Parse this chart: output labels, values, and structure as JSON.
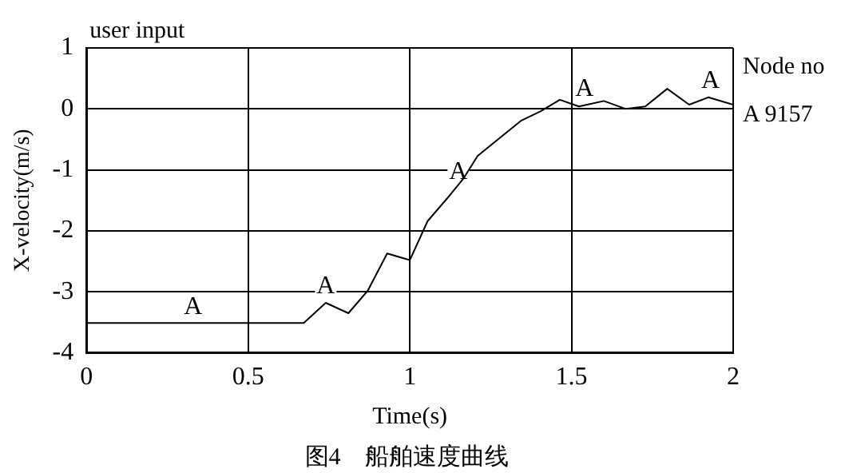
{
  "chart_data": {
    "type": "line",
    "title": "user input",
    "xlabel": "Time(s)",
    "ylabel": "X-velocity(m/s)",
    "legend_title": "Node no",
    "legend": "right",
    "x": [
      0,
      0.672,
      0.74,
      0.81,
      0.87,
      0.93,
      1.0,
      1.055,
      1.115,
      1.166,
      1.21,
      1.345,
      1.404,
      1.464,
      1.523,
      1.6,
      1.668,
      1.728,
      1.796,
      1.864,
      1.923,
      2.0
    ],
    "series": [
      {
        "name": "A 9157",
        "color": "#000000",
        "values": [
          -3.51,
          -3.51,
          -3.18,
          -3.35,
          -2.98,
          -2.37,
          -2.48,
          -1.84,
          -1.47,
          -1.14,
          -0.77,
          -0.19,
          -0.04,
          0.15,
          0.04,
          0.13,
          0.0,
          0.04,
          0.33,
          0.07,
          0.19,
          0.07
        ]
      }
    ],
    "xlim": [
      0,
      2
    ],
    "xticks": [
      0,
      0.5,
      1,
      1.5,
      2
    ],
    "ylim": [
      -4,
      1
    ],
    "yticks": [
      -4,
      -3,
      -2,
      -1,
      0,
      1
    ],
    "grid": true,
    "annotations": [
      {
        "text": "A",
        "x": 0.33,
        "y": -3.51
      },
      {
        "text": "A",
        "x": 0.74,
        "y": -3.18
      },
      {
        "text": "A",
        "x": 1.15,
        "y": -1.3
      },
      {
        "text": "A",
        "x": 1.54,
        "y": 0.06
      },
      {
        "text": "A",
        "x": 1.93,
        "y": 0.19
      },
      "图4　船舶速度曲线"
    ]
  }
}
